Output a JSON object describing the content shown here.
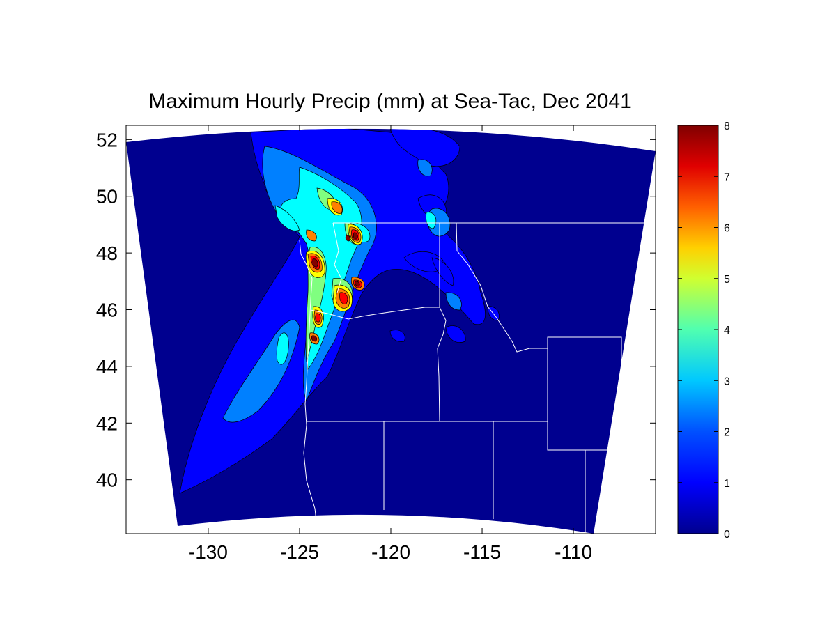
{
  "title": "Maximum Hourly Precip (mm) at Sea-Tac, Dec 2041",
  "map": {
    "x_ticks": [
      -130,
      -125,
      -120,
      -115,
      -110
    ],
    "x_tick_labels": [
      "-130",
      "-125",
      "-120",
      "-115",
      "-110"
    ],
    "y_ticks": [
      40,
      42,
      44,
      46,
      48,
      50,
      52
    ],
    "y_tick_labels": [
      "40",
      "42",
      "44",
      "46",
      "48",
      "50",
      "52"
    ],
    "xlim": [
      -134.5,
      -105.5
    ],
    "ylim": [
      38.1,
      52.5
    ],
    "background_color": "#00008F",
    "boundary_color": "#FFFFFF"
  },
  "colorbar": {
    "range": [
      0,
      8
    ],
    "tick_labels": [
      "0",
      "1",
      "2",
      "3",
      "4",
      "5",
      "6",
      "7",
      "8"
    ],
    "colormap": "jet",
    "colors": [
      "#00008F",
      "#0000FF",
      "#0080FF",
      "#00FFFF",
      "#80FF80",
      "#FFFF00",
      "#FF8000",
      "#FF0000",
      "#800000"
    ]
  }
}
